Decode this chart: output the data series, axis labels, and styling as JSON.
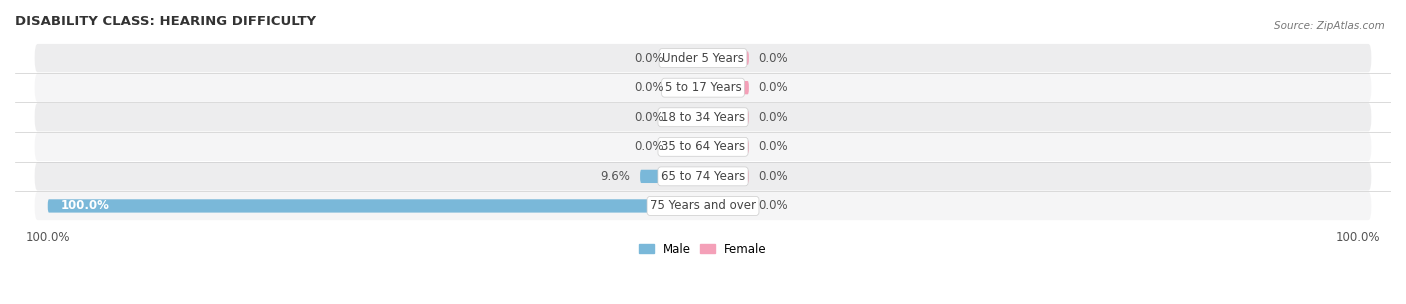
{
  "title": "DISABILITY CLASS: HEARING DIFFICULTY",
  "source": "Source: ZipAtlas.com",
  "categories": [
    "Under 5 Years",
    "5 to 17 Years",
    "18 to 34 Years",
    "35 to 64 Years",
    "65 to 74 Years",
    "75 Years and over"
  ],
  "male_values": [
    0.0,
    0.0,
    0.0,
    0.0,
    9.6,
    100.0
  ],
  "female_values": [
    0.0,
    0.0,
    0.0,
    0.0,
    0.0,
    0.0
  ],
  "male_color": "#7ab8d9",
  "female_color": "#f4a0b8",
  "row_bg_color_odd": "#ededee",
  "row_bg_color_even": "#f5f5f6",
  "male_label": "Male",
  "female_label": "Female",
  "max_value": 100.0,
  "title_fontsize": 9.5,
  "label_fontsize": 8.5,
  "tick_fontsize": 8.5,
  "bar_height": 0.45,
  "background_color": "#ffffff",
  "center_label_color": "#444444",
  "value_label_color": "#555555",
  "min_stub_for_zero": 4.5,
  "female_stub": 7.0
}
